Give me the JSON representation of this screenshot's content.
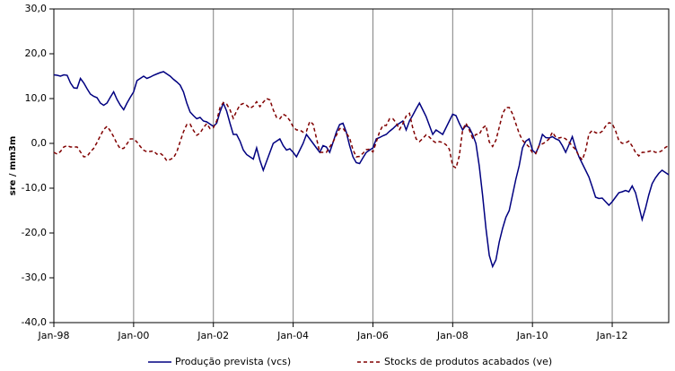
{
  "chart_data": {
    "type": "line",
    "y_label": "sre / mm3m",
    "categories": [
      "Jan-98",
      null,
      null,
      null,
      null,
      null,
      null,
      null,
      null,
      null,
      null,
      null,
      null,
      null,
      null,
      null,
      null,
      null,
      null,
      null,
      null,
      null,
      null,
      null,
      "Jan-00",
      null,
      null,
      null,
      null,
      null,
      null,
      null,
      null,
      null,
      null,
      null,
      null,
      null,
      null,
      null,
      null,
      null,
      null,
      null,
      null,
      null,
      null,
      null,
      "Jan-02",
      null,
      null,
      null,
      null,
      null,
      null,
      null,
      null,
      null,
      null,
      null,
      null,
      null,
      null,
      null,
      null,
      null,
      null,
      null,
      null,
      null,
      null,
      null,
      "Jan-04",
      null,
      null,
      null,
      null,
      null,
      null,
      null,
      null,
      null,
      null,
      null,
      null,
      null,
      null,
      null,
      null,
      null,
      null,
      null,
      null,
      null,
      null,
      null,
      "Jan-06",
      null,
      null,
      null,
      null,
      null,
      null,
      null,
      null,
      null,
      null,
      null,
      null,
      null,
      null,
      null,
      null,
      null,
      null,
      null,
      null,
      null,
      null,
      null,
      "Jan-08",
      null,
      null,
      null,
      null,
      null,
      null,
      null,
      null,
      null,
      null,
      null,
      null,
      null,
      null,
      null,
      null,
      null,
      null,
      null,
      null,
      null,
      null,
      null,
      "Jan-10",
      null,
      null,
      null,
      null,
      null,
      null,
      null,
      null,
      null,
      null,
      null,
      null,
      null,
      null,
      null,
      null,
      null,
      null,
      null,
      null,
      null,
      null,
      null,
      "Jan-12",
      null,
      null,
      null,
      null,
      null,
      null,
      null,
      null,
      null,
      null,
      null,
      null,
      null,
      null,
      null,
      null,
      null
    ],
    "series": [
      {
        "name": "Produção prevista (vcs)",
        "color": "#000080",
        "dash": false,
        "values": [
          15.3,
          15.2,
          15.0,
          15.3,
          15.2,
          13.5,
          12.4,
          12.3,
          14.5,
          13.5,
          12.2,
          11.0,
          10.5,
          10.2,
          9.0,
          8.5,
          9.0,
          10.3,
          11.5,
          9.8,
          8.5,
          7.5,
          9.0,
          10.3,
          11.5,
          14.0,
          14.5,
          15.0,
          14.5,
          14.8,
          15.2,
          15.5,
          15.8,
          16.0,
          15.5,
          15.0,
          14.3,
          13.7,
          13.0,
          11.5,
          9.0,
          7.0,
          6.2,
          5.5,
          5.8,
          5.0,
          4.8,
          4.3,
          3.8,
          4.5,
          7.0,
          9.0,
          7.2,
          4.5,
          2.0,
          2.0,
          0.5,
          -1.5,
          -2.5,
          -3.0,
          -3.5,
          -1.0,
          -3.8,
          -6.0,
          -4.0,
          -2.0,
          0.0,
          0.5,
          1.0,
          -0.5,
          -1.5,
          -1.2,
          -2.0,
          -3.0,
          -1.5,
          0.0,
          2.0,
          1.0,
          0.0,
          -1.0,
          -2.0,
          -0.5,
          -0.8,
          -2.0,
          0.2,
          2.5,
          4.2,
          4.5,
          2.5,
          -0.5,
          -3.0,
          -4.3,
          -4.5,
          -3.2,
          -2.0,
          -1.5,
          -1.0,
          1.0,
          1.3,
          1.7,
          2.0,
          2.7,
          3.3,
          4.0,
          4.5,
          5.0,
          3.0,
          5.0,
          6.3,
          7.7,
          9.0,
          7.5,
          6.0,
          4.0,
          2.0,
          3.0,
          2.5,
          2.0,
          3.5,
          5.0,
          6.5,
          6.2,
          4.5,
          3.0,
          4.0,
          3.5,
          2.0,
          0.0,
          -5.0,
          -11.5,
          -19.0,
          -25.0,
          -27.5,
          -26.0,
          -22.0,
          -19.0,
          -16.5,
          -15.0,
          -11.5,
          -8.0,
          -5.0,
          -1.0,
          0.5,
          1.0,
          -1.5,
          -2.2,
          -0.5,
          2.0,
          1.3,
          1.2,
          1.5,
          1.0,
          0.7,
          -0.5,
          -2.0,
          -0.3,
          1.5,
          -1.0,
          -3.0,
          -4.5,
          -6.0,
          -7.5,
          -9.7,
          -12.0,
          -12.3,
          -12.2,
          -13.0,
          -13.8,
          -13.0,
          -12.0,
          -11.0,
          -10.8,
          -10.5,
          -10.8,
          -9.5,
          -11.0,
          -14.0,
          -17.0,
          -14.5,
          -11.5,
          -9.0,
          -7.7,
          -6.7,
          -6.0,
          -6.5,
          -7.0
        ]
      },
      {
        "name": "Stocks de produtos acabados (ve)",
        "color": "#800000",
        "dash": true,
        "values": [
          -2.0,
          -2.4,
          -1.8,
          -0.8,
          -0.5,
          -0.8,
          -0.8,
          -0.8,
          -1.9,
          -3.0,
          -2.9,
          -1.9,
          -1.1,
          0.2,
          1.7,
          3.1,
          3.8,
          2.8,
          1.5,
          -0.1,
          -1.2,
          -1.1,
          -0.1,
          1.0,
          1.0,
          0.3,
          -0.7,
          -1.5,
          -1.9,
          -1.8,
          -1.7,
          -2.4,
          -2.2,
          -2.8,
          -3.9,
          -3.6,
          -3.2,
          -1.9,
          0.4,
          2.6,
          4.2,
          4.3,
          2.9,
          1.8,
          2.3,
          3.5,
          4.4,
          3.3,
          3.5,
          5.0,
          8.0,
          9.1,
          8.8,
          7.5,
          5.6,
          7.2,
          8.6,
          8.9,
          8.5,
          7.8,
          8.3,
          9.3,
          8.2,
          9.2,
          10.0,
          9.7,
          7.5,
          5.8,
          5.5,
          6.5,
          6.1,
          5.1,
          3.7,
          3.0,
          3.0,
          2.5,
          2.7,
          4.9,
          4.3,
          1.2,
          -2.0,
          -2.0,
          -2.0,
          -0.8,
          0.3,
          1.8,
          3.3,
          3.4,
          2.3,
          1.2,
          -1.4,
          -3.0,
          -2.9,
          -2.2,
          -1.4,
          -1.3,
          -1.9,
          0.3,
          2.6,
          4.0,
          4.0,
          5.5,
          5.5,
          4.6,
          3.1,
          4.4,
          6.1,
          6.7,
          3.4,
          1.0,
          0.4,
          1.1,
          1.9,
          1.4,
          0.6,
          0.1,
          0.4,
          0.2,
          -0.3,
          -1.3,
          -5.0,
          -5.5,
          -2.8,
          3.0,
          4.5,
          3.0,
          1.2,
          2.0,
          2.0,
          3.4,
          4.0,
          0.3,
          -0.7,
          0.7,
          3.6,
          6.6,
          8.0,
          8.0,
          6.6,
          4.4,
          2.2,
          0.7,
          -0.1,
          -0.8,
          -2.1,
          -2.3,
          -0.5,
          -0.1,
          0.3,
          1.0,
          2.5,
          1.4,
          1.2,
          1.4,
          1.0,
          0.3,
          -0.6,
          -1.4,
          -2.8,
          -3.7,
          -1.6,
          2.1,
          2.9,
          2.4,
          2.2,
          2.7,
          3.8,
          4.6,
          4.4,
          2.8,
          0.6,
          0.0,
          0.1,
          0.5,
          -0.6,
          -2.0,
          -2.8,
          -2.0,
          -2.0,
          -1.8,
          -1.6,
          -2.0,
          -2.0,
          -1.6,
          -0.9,
          -0.5
        ]
      }
    ],
    "ylim": [
      -40,
      30
    ],
    "yticks": [
      {
        "value": -40,
        "label": "-40,0"
      },
      {
        "value": -30,
        "label": "-30,0"
      },
      {
        "value": -20,
        "label": "-20,0"
      },
      {
        "value": -10,
        "label": "-10,0"
      },
      {
        "value": 0,
        "label": "0,0"
      },
      {
        "value": 10,
        "label": "10,0"
      },
      {
        "value": 20,
        "label": "20,0"
      },
      {
        "value": 30,
        "label": "30,0"
      }
    ],
    "grid": false,
    "category_grid": true,
    "legend": "bottom"
  }
}
